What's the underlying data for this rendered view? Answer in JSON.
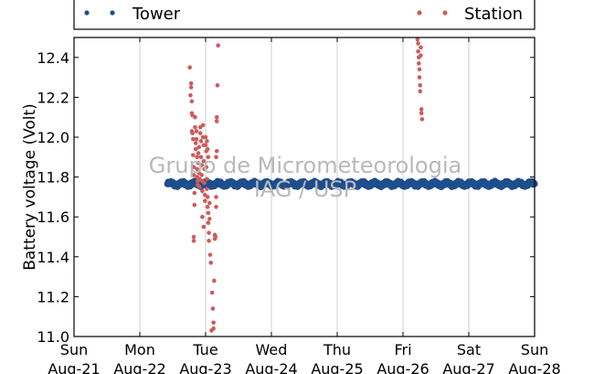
{
  "chart_data": {
    "type": "scatter",
    "title": "",
    "xlabel": "",
    "ylabel": "Battery voltage (Volt)",
    "ylim": [
      11.0,
      12.5
    ],
    "yticks": [
      11.0,
      11.2,
      11.4,
      11.6,
      11.8,
      12.0,
      12.2,
      12.4
    ],
    "xlim": [
      "2016-08-21",
      "2016-08-28"
    ],
    "xticks": [
      {
        "day": "Sun",
        "date": "Aug-21"
      },
      {
        "day": "Mon",
        "date": "Aug-22"
      },
      {
        "day": "Tue",
        "date": "Aug-23"
      },
      {
        "day": "Wed",
        "date": "Aug-24"
      },
      {
        "day": "Thu",
        "date": "Aug-25"
      },
      {
        "day": "Fri",
        "date": "Aug-26"
      },
      {
        "day": "Sat",
        "date": "Aug-27"
      },
      {
        "day": "Sun",
        "date": "Aug-28"
      }
    ],
    "grid": "vertical",
    "legend_placement": "top",
    "watermark": [
      "Grupo de Micrometeorologia",
      "IAG / USP"
    ],
    "series": [
      {
        "name": "Tower",
        "color": "#1f4e8c",
        "style": "continuous-band",
        "x_range": [
          1.42,
          7.0
        ],
        "y_range": [
          11.75,
          11.78
        ]
      },
      {
        "name": "Station",
        "color": "#cd5c5c",
        "points": [
          [
            1.76,
            12.35
          ],
          [
            1.77,
            12.21
          ],
          [
            1.78,
            12.27
          ],
          [
            1.78,
            12.25
          ],
          [
            1.79,
            12.18
          ],
          [
            1.79,
            12.12
          ],
          [
            1.79,
            12.03
          ],
          [
            1.8,
            12.02
          ],
          [
            1.8,
            12.11
          ],
          [
            1.81,
            11.99
          ],
          [
            1.81,
            11.91
          ],
          [
            1.82,
            11.85
          ],
          [
            1.82,
            11.81
          ],
          [
            1.83,
            11.72
          ],
          [
            1.83,
            11.66
          ],
          [
            1.82,
            11.5
          ],
          [
            1.82,
            11.48
          ],
          [
            1.84,
            12.1
          ],
          [
            1.84,
            12.05
          ],
          [
            1.85,
            11.97
          ],
          [
            1.85,
            11.94
          ],
          [
            1.86,
            12.03
          ],
          [
            1.86,
            11.99
          ],
          [
            1.87,
            11.9
          ],
          [
            1.87,
            11.84
          ],
          [
            1.87,
            11.8
          ],
          [
            1.88,
            11.78
          ],
          [
            1.88,
            11.76
          ],
          [
            1.89,
            11.92
          ],
          [
            1.89,
            11.87
          ],
          [
            1.9,
            11.95
          ],
          [
            1.9,
            11.82
          ],
          [
            1.91,
            11.79
          ],
          [
            1.91,
            11.75
          ],
          [
            1.92,
            12.05
          ],
          [
            1.92,
            12.02
          ],
          [
            1.93,
            11.98
          ],
          [
            1.93,
            11.9
          ],
          [
            1.94,
            11.86
          ],
          [
            1.94,
            11.81
          ],
          [
            1.95,
            11.78
          ],
          [
            1.95,
            11.73
          ],
          [
            1.96,
            12.06
          ],
          [
            1.96,
            12.0
          ],
          [
            1.97,
            11.96
          ],
          [
            1.97,
            11.88
          ],
          [
            1.98,
            11.84
          ],
          [
            1.98,
            11.77
          ],
          [
            1.99,
            11.71
          ],
          [
            1.99,
            11.68
          ],
          [
            2.0,
            12.0
          ],
          [
            2.0,
            11.96
          ],
          [
            2.01,
            11.93
          ],
          [
            2.01,
            11.85
          ],
          [
            2.02,
            11.79
          ],
          [
            2.02,
            11.74
          ],
          [
            2.03,
            11.7
          ],
          [
            2.03,
            11.65
          ],
          [
            2.04,
            11.62
          ],
          [
            2.04,
            11.57
          ],
          [
            2.05,
            11.52
          ],
          [
            2.05,
            11.48
          ],
          [
            2.04,
            11.9
          ],
          [
            2.03,
            11.94
          ],
          [
            2.02,
            11.98
          ],
          [
            1.97,
            11.55
          ],
          [
            1.95,
            11.6
          ],
          [
            2.1,
            11.22
          ],
          [
            2.11,
            11.14
          ],
          [
            2.12,
            11.07
          ],
          [
            2.12,
            11.04
          ],
          [
            2.09,
            11.03
          ],
          [
            2.08,
            11.37
          ],
          [
            2.07,
            11.41
          ],
          [
            2.06,
            11.59
          ],
          [
            2.06,
            11.67
          ],
          [
            2.13,
            11.28
          ],
          [
            2.14,
            11.49
          ],
          [
            2.14,
            11.51
          ],
          [
            2.15,
            11.5
          ],
          [
            2.16,
            11.65
          ],
          [
            2.16,
            11.7
          ],
          [
            2.16,
            11.9
          ],
          [
            2.17,
            11.93
          ],
          [
            2.17,
            12.1
          ],
          [
            2.17,
            12.08
          ],
          [
            2.18,
            12.26
          ],
          [
            2.19,
            12.46
          ],
          [
            5.22,
            12.49
          ],
          [
            5.23,
            12.47
          ],
          [
            5.23,
            12.43
          ],
          [
            5.24,
            12.4
          ],
          [
            5.24,
            12.37
          ],
          [
            5.25,
            12.34
          ],
          [
            5.25,
            12.3
          ],
          [
            5.26,
            12.26
          ],
          [
            5.26,
            12.23
          ],
          [
            5.27,
            12.45
          ],
          [
            5.27,
            12.41
          ],
          [
            5.28,
            12.14
          ],
          [
            5.28,
            12.12
          ],
          [
            5.29,
            12.09
          ]
        ]
      }
    ]
  }
}
